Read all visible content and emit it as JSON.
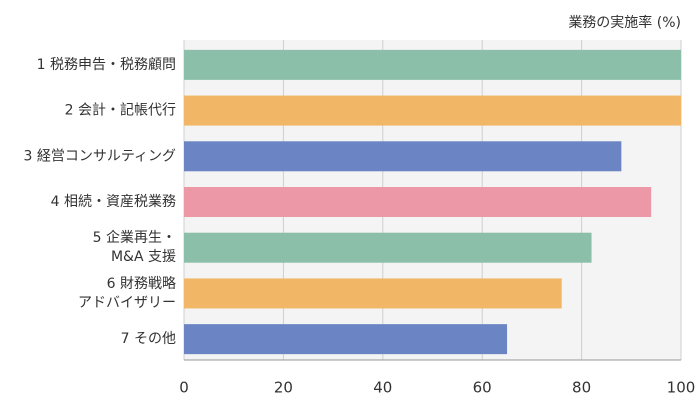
{
  "chart_data": {
    "type": "bar",
    "orientation": "horizontal",
    "title": "業務の実施率 (%)",
    "categories": [
      "1 税務申告・税務顧問",
      "2 会計・記帳代行",
      "3 経営コンサルティング",
      "4 相続・資産税業務",
      [
        "5 企業再生・",
        "M&A 支援"
      ],
      [
        "6 財務戦略",
        "アドバイザリー"
      ],
      "7 その他"
    ],
    "values": [
      100,
      100,
      88,
      94,
      82,
      76,
      65
    ],
    "colors": [
      "#8cbfaa",
      "#f2b766",
      "#6b84c4",
      "#ec98a6",
      "#8cbfaa",
      "#f2b766",
      "#6b84c4"
    ],
    "xlim": [
      0,
      100
    ],
    "xticks": [
      0,
      20,
      40,
      60,
      80,
      100
    ],
    "grid": true
  }
}
